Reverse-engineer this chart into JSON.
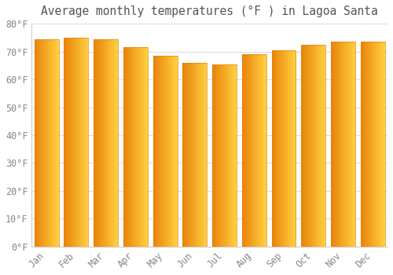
{
  "title": "Average monthly temperatures (°F ) in Lagoa Santa",
  "months": [
    "Jan",
    "Feb",
    "Mar",
    "Apr",
    "May",
    "Jun",
    "Jul",
    "Aug",
    "Sep",
    "Oct",
    "Nov",
    "Dec"
  ],
  "values": [
    74.5,
    75.0,
    74.5,
    71.5,
    68.5,
    66.0,
    65.5,
    69.0,
    70.5,
    72.5,
    73.5,
    73.5
  ],
  "bar_color_left": "#E8820A",
  "bar_color_right": "#FFD040",
  "ylim": [
    0,
    80
  ],
  "yticks": [
    0,
    10,
    20,
    30,
    40,
    50,
    60,
    70,
    80
  ],
  "ytick_labels": [
    "0°F",
    "10°F",
    "20°F",
    "30°F",
    "40°F",
    "50°F",
    "60°F",
    "70°F",
    "80°F"
  ],
  "background_color": "#FFFFFF",
  "grid_color": "#DDDDDD",
  "title_fontsize": 10.5,
  "tick_fontsize": 8.5,
  "bar_width": 0.82
}
